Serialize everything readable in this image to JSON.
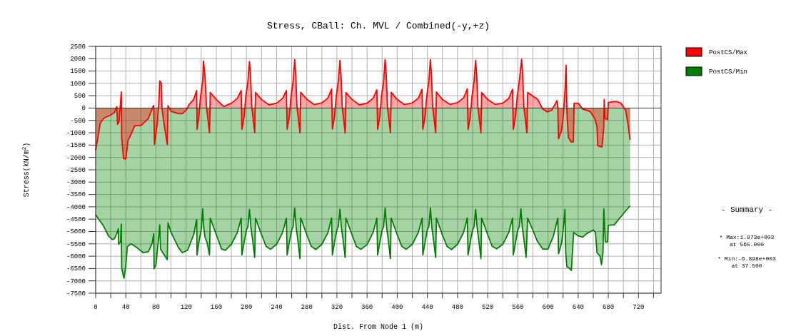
{
  "chart_data": {
    "type": "area",
    "title": "Stress, CBall: Ch. MVL / Combined(-y,+z)",
    "xlabel": "Dist. From Node 1 (m)",
    "ylabel": "Stress(kN/m$^{2}$)",
    "xlim": [
      0,
      750
    ],
    "ylim": [
      -7500,
      2500
    ],
    "xticks": [
      0,
      {
        "value": 20,
        "label": null
      },
      40,
      {
        "value": 60,
        "label": null
      },
      80,
      {
        "value": 100,
        "label": null
      },
      120,
      {
        "value": 140,
        "label": null
      },
      160,
      {
        "value": 180,
        "label": null
      },
      200,
      {
        "value": 220,
        "label": null
      },
      240,
      {
        "value": 260,
        "label": null
      },
      280,
      {
        "value": 300,
        "label": null
      },
      320,
      {
        "value": 340,
        "label": null
      },
      360,
      {
        "value": 380,
        "label": null
      },
      400,
      {
        "value": 420,
        "label": null
      },
      440,
      {
        "value": 460,
        "label": null
      },
      480,
      {
        "value": 500,
        "label": null
      },
      520,
      {
        "value": 540,
        "label": null
      },
      560,
      {
        "value": 580,
        "label": null
      },
      600,
      {
        "value": 620,
        "label": null
      },
      640,
      {
        "value": 660,
        "label": null
      },
      680,
      {
        "value": 700,
        "label": null
      },
      720,
      {
        "value": 740,
        "label": null
      }
    ],
    "yticks": [
      -7500,
      -7000,
      -6500,
      -6000,
      -5500,
      -5000,
      -4500,
      -4000,
      -3500,
      -3000,
      -2500,
      -2000,
      -1500,
      -1000,
      -500,
      0,
      500,
      1000,
      1500,
      2000,
      2500
    ],
    "grid": true,
    "legend": "top right",
    "annotations": [
      "- Summary -",
      "* Max:1.973e+003",
      "at 565.000",
      "* Min:-6.898e+003",
      "at 37.500"
    ],
    "series": [
      {
        "name": "PostCS/Min",
        "color": "#008000",
        "x": [
          0,
          3,
          10,
          17,
          22,
          25,
          28,
          30,
          30.5,
          33,
          34,
          34.5,
          37.5,
          40,
          42,
          47,
          55,
          63,
          70,
          75,
          77,
          77.5,
          80,
          82,
          84,
          85,
          86,
          88,
          95,
          96,
          100,
          110,
          115,
          122,
          130,
          134,
          134.5,
          137,
          140,
          142,
          143,
          145,
          148,
          151,
          152,
          160,
          167,
          172,
          180,
          188,
          193,
          194,
          197,
          200,
          202,
          204,
          206,
          208,
          211,
          212,
          220,
          226,
          232,
          240,
          248,
          253,
          254,
          257,
          260,
          262,
          264,
          266,
          268,
          271,
          272,
          280,
          286,
          292,
          300,
          308,
          313,
          314,
          317,
          320,
          322,
          324,
          326,
          328,
          331,
          332,
          340,
          346,
          352,
          360,
          368,
          373,
          374,
          377,
          380,
          382,
          384,
          386,
          388,
          391,
          392,
          400,
          406,
          412,
          420,
          428,
          433,
          434,
          437,
          440,
          442,
          444,
          446,
          448,
          451,
          452,
          460,
          466,
          472,
          480,
          488,
          493,
          494,
          497,
          500,
          502,
          504,
          506,
          508,
          511,
          512,
          520,
          526,
          532,
          540,
          548,
          553,
          554,
          557,
          560,
          562,
          564,
          566,
          568,
          571,
          573,
          580,
          586,
          593,
          600,
          607,
          613,
          614,
          618,
          620,
          622.5,
          623.5,
          625,
          628,
          631,
          634,
          640,
          646,
          651,
          660,
          663,
          665,
          669,
          671,
          673,
          674,
          676,
          679,
          680,
          688,
          695,
          703,
          709
        ],
        "values": [
          -4320,
          -4460,
          -4750,
          -5180,
          -5330,
          -5280,
          -5090,
          -4890,
          -5520,
          -5420,
          -4700,
          -6480,
          -6898,
          -6380,
          -5615,
          -5500,
          -5660,
          -5860,
          -5810,
          -5470,
          -5090,
          -6510,
          -6340,
          -5710,
          -5130,
          -4730,
          -5710,
          -5810,
          -6140,
          -4650,
          -5040,
          -5660,
          -5860,
          -5760,
          -5130,
          -4510,
          -5950,
          -5420,
          -4940,
          -4080,
          -4750,
          -5230,
          -5470,
          -5950,
          -4460,
          -5130,
          -5710,
          -5760,
          -5520,
          -5040,
          -4460,
          -5950,
          -5420,
          -4940,
          -4800,
          -4100,
          -4850,
          -5300,
          -6050,
          -4460,
          -5130,
          -5600,
          -5720,
          -5520,
          -5040,
          -4460,
          -5950,
          -5420,
          -4950,
          -4800,
          -4050,
          -4850,
          -5300,
          -6100,
          -4450,
          -5130,
          -5600,
          -5730,
          -5520,
          -5050,
          -4450,
          -5950,
          -5400,
          -4940,
          -4790,
          -4100,
          -4850,
          -5300,
          -6050,
          -4460,
          -5130,
          -5610,
          -5720,
          -5530,
          -5040,
          -4460,
          -5950,
          -5420,
          -4940,
          -4800,
          -4050,
          -4850,
          -5300,
          -6100,
          -4460,
          -5130,
          -5600,
          -5720,
          -5520,
          -5040,
          -4460,
          -5950,
          -5420,
          -4940,
          -4800,
          -4050,
          -4850,
          -5300,
          -6050,
          -4460,
          -5140,
          -5600,
          -5730,
          -5520,
          -5040,
          -4450,
          -5950,
          -5420,
          -4940,
          -4800,
          -4100,
          -4850,
          -5300,
          -6100,
          -4460,
          -5130,
          -5600,
          -5700,
          -5520,
          -5040,
          -4460,
          -5950,
          -5420,
          -4940,
          -4800,
          -4080,
          -4850,
          -5300,
          -6050,
          -4460,
          -4950,
          -5400,
          -5710,
          -5710,
          -5200,
          -4460,
          -5900,
          -5470,
          -4990,
          -4100,
          -5810,
          -6430,
          -6480,
          -6580,
          -5040,
          -5180,
          -5230,
          -5090,
          -4940,
          -5040,
          -5860,
          -6000,
          -6340,
          -5810,
          -4080,
          -5420,
          -5420,
          -4750,
          -4730,
          -4460,
          -4170,
          -3960
        ]
      },
      {
        "name": "PostCS/Max",
        "color": "#ff0000",
        "x": [
          0,
          3,
          6,
          11,
          20,
          25,
          28,
          29,
          31,
          34,
          34.5,
          37,
          40,
          43,
          45,
          52,
          60,
          70,
          76,
          77,
          78,
          82,
          84,
          85,
          87,
          88,
          91,
          95,
          96,
          100,
          110,
          115,
          120,
          124,
          130,
          134,
          134.5,
          137,
          139,
          142,
          143,
          145,
          147,
          151,
          152,
          160,
          170,
          180,
          188,
          193,
          194,
          197,
          199,
          202,
          204,
          205.5,
          207,
          211,
          212,
          220,
          230,
          240,
          248,
          253,
          254,
          257,
          259,
          262,
          264,
          265.5,
          267,
          271,
          272,
          280,
          290,
          300,
          308,
          313,
          314,
          317,
          319,
          322,
          324,
          325.5,
          327,
          331,
          332,
          340,
          350,
          360,
          368,
          373,
          374,
          377,
          379,
          382,
          384,
          385.5,
          387,
          391,
          392,
          400,
          410,
          420,
          428,
          433,
          434,
          437,
          439,
          442,
          444,
          445.5,
          447,
          451,
          452,
          460,
          470,
          480,
          488,
          493,
          494,
          497,
          499,
          502,
          504,
          505.5,
          507,
          511,
          512,
          520,
          530,
          540,
          548,
          553,
          554,
          557,
          559,
          562,
          565,
          566.5,
          568,
          572,
          573,
          586.5,
          593,
          599,
          605,
          612,
          613,
          614,
          618,
          620.5,
          622.7,
          624,
          625,
          627,
          630.5,
          633.7,
          634.6,
          640,
          646,
          655.7,
          662,
          665,
          666,
          671.5,
          673.9,
          674.6,
          675.6,
          679,
          680,
          690,
          696.7,
          703,
          706,
          708.9
        ],
        "values": [
          -1721,
          -1190,
          -615,
          -404,
          -280,
          -183,
          58,
          -660,
          -560,
          650,
          -1200,
          -2050,
          -2060,
          -1290,
          -1190,
          -710,
          -710,
          -420,
          58,
          100,
          -1480,
          -570,
          350,
          1100,
          1020,
          -40,
          -710,
          -1480,
          100,
          -135,
          -230,
          -230,
          -90,
          150,
          350,
          710,
          -860,
          -330,
          440,
          1115,
          1900,
          1310,
          60,
          -1000,
          635,
          350,
          60,
          200,
          395,
          710,
          -860,
          -330,
          440,
          1115,
          1880,
          1310,
          60,
          -1000,
          635,
          350,
          130,
          200,
          395,
          710,
          -860,
          -330,
          440,
          1115,
          1960,
          1300,
          60,
          -1000,
          640,
          360,
          140,
          210,
          400,
          770,
          -850,
          -320,
          450,
          1120,
          1930,
          1310,
          50,
          -1010,
          630,
          350,
          130,
          200,
          390,
          740,
          -860,
          -330,
          440,
          1110,
          1960,
          1320,
          60,
          -1000,
          640,
          350,
          140,
          210,
          400,
          760,
          -860,
          -330,
          440,
          1115,
          1960,
          1300,
          60,
          -1000,
          650,
          350,
          150,
          220,
          410,
          780,
          -870,
          -330,
          430,
          1110,
          1930,
          1310,
          60,
          -1010,
          630,
          350,
          150,
          200,
          390,
          760,
          -860,
          -330,
          440,
          1115,
          1973,
          1310,
          60,
          -1000,
          635,
          346,
          -40,
          -155,
          -87,
          300,
          58,
          -1240,
          -900,
          -230,
          830,
          1740,
          -40,
          -1190,
          -1365,
          -1365,
          200,
          200,
          -40,
          -135,
          -420,
          -760,
          -1530,
          -1580,
          -810,
          350,
          -420,
          -470,
          230,
          270,
          200,
          -90,
          -615,
          -1290
        ]
      }
    ]
  }
}
